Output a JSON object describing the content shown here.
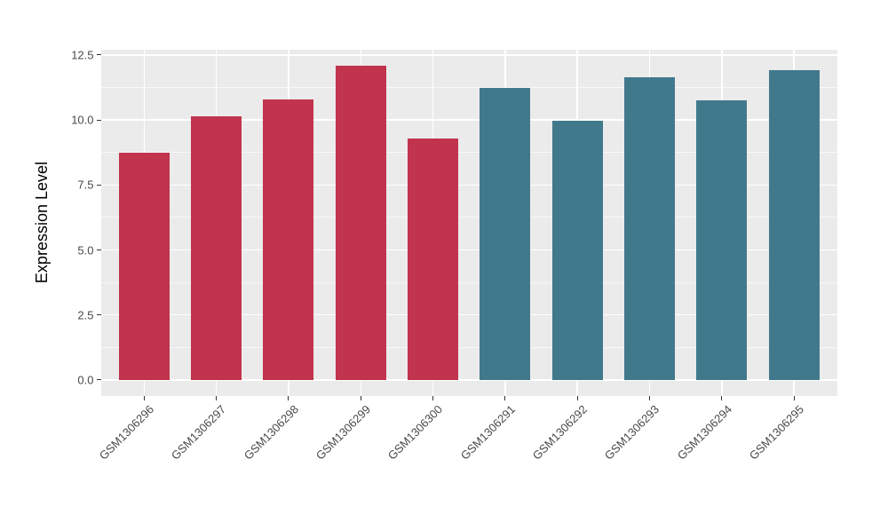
{
  "chart_data": {
    "type": "bar",
    "title": "",
    "xlabel": "",
    "ylabel": "Expression Level",
    "categories": [
      "GSM1306296",
      "GSM1306297",
      "GSM1306298",
      "GSM1306299",
      "GSM1306300",
      "GSM1306291",
      "GSM1306292",
      "GSM1306293",
      "GSM1306294",
      "GSM1306295"
    ],
    "values": [
      8.75,
      10.15,
      10.78,
      12.08,
      9.27,
      11.22,
      9.98,
      11.65,
      10.75,
      11.92
    ],
    "bar_colors": [
      "#C2334D",
      "#C2334D",
      "#C2334D",
      "#C2334D",
      "#C2334D",
      "#41798C",
      "#41798C",
      "#41798C",
      "#41798C",
      "#41798C"
    ],
    "group_colors": {
      "left_group": "#C2334D",
      "right_group": "#41798C"
    },
    "ytick_labels": [
      "0.0",
      "2.5",
      "5.0",
      "7.5",
      "10.0",
      "12.5"
    ],
    "ytick_values": [
      0,
      2.5,
      5,
      7.5,
      10,
      12.5
    ],
    "yminor_values": [
      1.25,
      3.75,
      6.25,
      8.75,
      11.25
    ],
    "ylim": [
      -0.6,
      12.7
    ],
    "bar_width_fraction": 0.7,
    "x_expand": 0.6,
    "grid": true,
    "legend": "none",
    "panel_bg": "#EBEBEB",
    "grid_color": "#FFFFFF",
    "tick_color": "#333333",
    "axis_text_color": "#4a4a4a",
    "axis_title_color": "#000000"
  }
}
